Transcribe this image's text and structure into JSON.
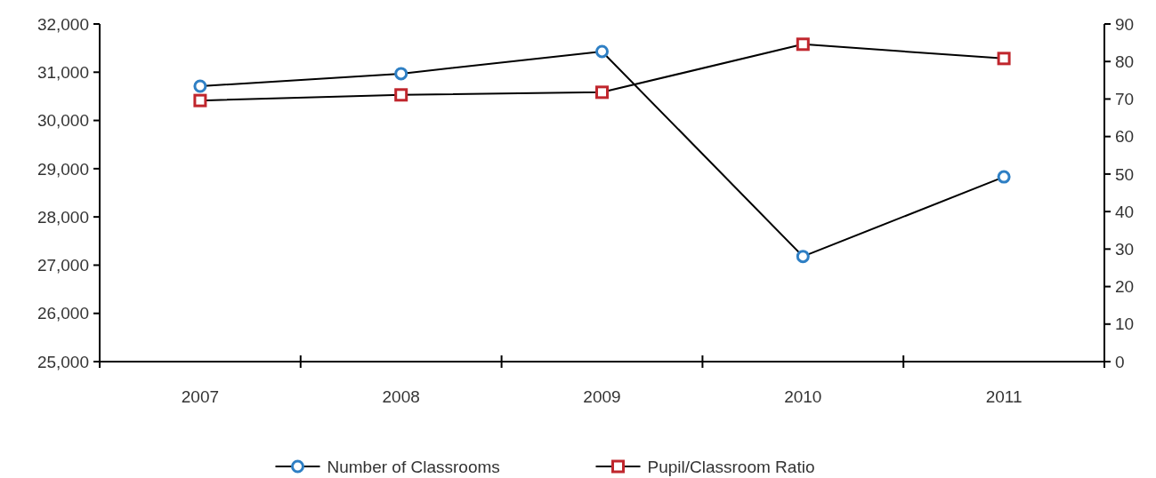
{
  "chart_data": {
    "type": "line",
    "categories": [
      "2007",
      "2008",
      "2009",
      "2010",
      "2011"
    ],
    "series": [
      {
        "name": "Number of Classrooms",
        "color": "#2e7fc4",
        "marker": "circle",
        "values": [
          30710,
          30970,
          31430,
          27180,
          28830
        ]
      },
      {
        "name": "Pupil/Classroom Ratio",
        "color": "#c0262d",
        "marker": "square",
        "axis": "y2",
        "values": [
          69.6,
          71.1,
          71.8,
          84.6,
          80.8
        ]
      }
    ],
    "ylim": [
      25000,
      32000
    ],
    "yticks": [
      {
        "value": 25000,
        "label": "25,000"
      },
      {
        "value": 26000,
        "label": "26,000"
      },
      {
        "value": 27000,
        "label": "27,000"
      },
      {
        "value": 28000,
        "label": "28,000"
      },
      {
        "value": 29000,
        "label": "29,000"
      },
      {
        "value": 30000,
        "label": "30,000"
      },
      {
        "value": 31000,
        "label": "31,000"
      },
      {
        "value": 32000,
        "label": "32,000"
      }
    ],
    "y2lim": [
      0,
      90
    ],
    "y2ticks": [
      0,
      10,
      20,
      30,
      40,
      50,
      60,
      70,
      80,
      90
    ],
    "grid": false,
    "legend": "bottom",
    "line_style": "solid"
  }
}
